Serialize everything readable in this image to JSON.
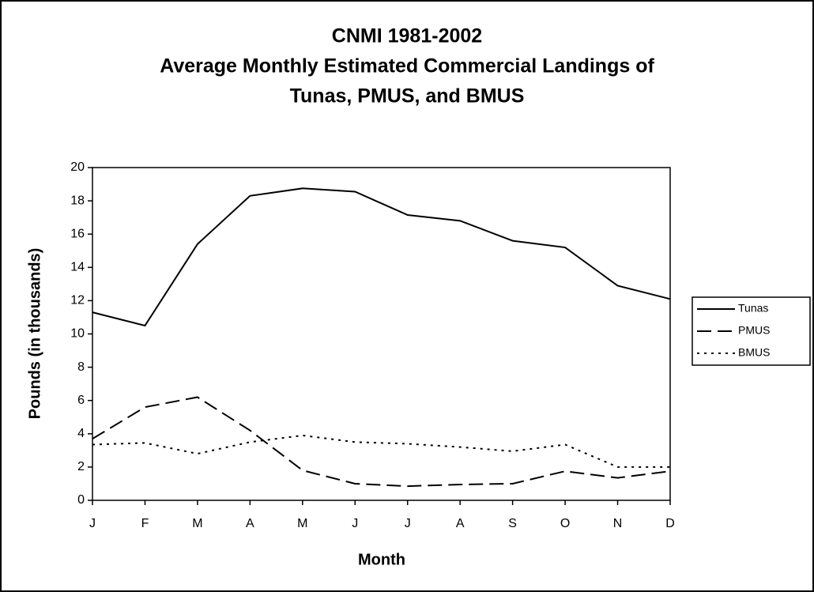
{
  "chart_data": {
    "type": "line",
    "title": [
      "CNMI 1981-2002",
      "Average Monthly Estimated Commercial Landings of",
      "Tunas, PMUS, and BMUS"
    ],
    "x_label": "Month",
    "y_label": "Pounds (in thousands)",
    "categories": [
      "J",
      "F",
      "M",
      "A",
      "M",
      "J",
      "J",
      "A",
      "S",
      "O",
      "N",
      "D"
    ],
    "series": [
      {
        "name": "Tunas",
        "color": "#000000",
        "dash": "solid",
        "values": [
          11.3,
          10.5,
          15.4,
          18.3,
          18.75,
          18.55,
          17.15,
          16.8,
          15.6,
          15.2,
          12.9,
          12.1
        ]
      },
      {
        "name": "PMUS",
        "color": "#000000",
        "dash": "dashed",
        "values": [
          3.7,
          5.6,
          6.2,
          4.2,
          1.8,
          1.0,
          0.85,
          0.95,
          1.0,
          1.75,
          1.35,
          1.75
        ]
      },
      {
        "name": "BMUS",
        "color": "#000000",
        "dash": "dotted",
        "values": [
          3.35,
          3.45,
          2.8,
          3.5,
          3.9,
          3.5,
          3.4,
          3.2,
          2.95,
          3.35,
          2.0,
          2.0
        ]
      }
    ],
    "ylim": [
      0,
      20
    ],
    "yticks": [
      0,
      2,
      4,
      6,
      8,
      10,
      12,
      14,
      16,
      18,
      20
    ],
    "grid": false,
    "legend": "right"
  }
}
